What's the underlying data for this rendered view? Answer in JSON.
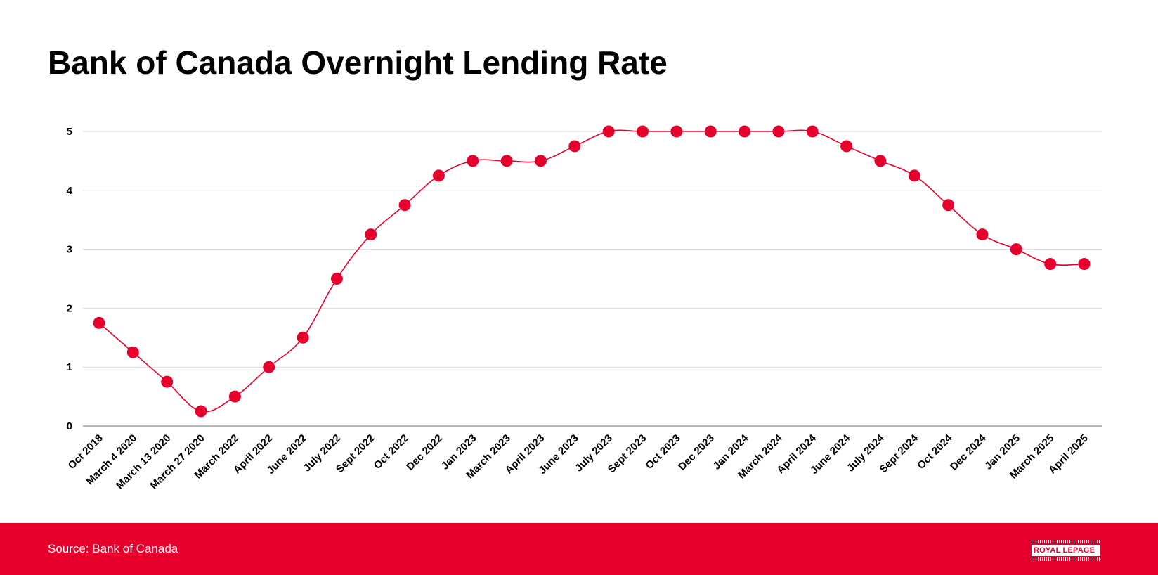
{
  "title": "Bank of Canada Overnight Lending Rate",
  "footer": {
    "source": "Source: Bank of Canada",
    "logo_text": "ROYAL LEPAGE",
    "background_color": "#E8002D"
  },
  "colors": {
    "series": "#E8002D",
    "grid": "#D9D9D9",
    "axis": "#888888"
  },
  "chart_data": {
    "type": "line",
    "title": "Bank of Canada Overnight Lending Rate",
    "xlabel": "",
    "ylabel": "",
    "categories": [
      "Oct 2018",
      "March 4 2020",
      "March 13 2020",
      "March 27 2020",
      "March 2022",
      "April 2022",
      "June 2022",
      "July 2022",
      "Sept 2022",
      "Oct 2022",
      "Dec 2022",
      "Jan 2023",
      "March 2023",
      "April 2023",
      "June 2023",
      "July 2023",
      "Sept 2023",
      "Oct 2023",
      "Dec 2023",
      "Jan 2024",
      "March 2024",
      "April 2024",
      "June 2024",
      "July 2024",
      "Sept 2024",
      "Oct 2024",
      "Dec 2024",
      "Jan 2025",
      "March 2025",
      "April 2025"
    ],
    "series": [
      {
        "values": [
          1.75,
          1.25,
          0.75,
          0.25,
          0.5,
          1.0,
          1.5,
          2.5,
          3.25,
          3.75,
          4.25,
          4.5,
          4.5,
          4.5,
          4.75,
          5.0,
          5.0,
          5.0,
          5.0,
          5.0,
          5.0,
          5.0,
          4.75,
          4.5,
          4.25,
          3.75,
          3.25,
          3.0,
          2.75,
          2.75
        ]
      }
    ],
    "ylim": [
      0,
      5
    ],
    "yticks": [
      "0",
      "1",
      "2",
      "3",
      "4",
      "5"
    ],
    "grid": true,
    "legend": "none",
    "smooth": true,
    "markers": true
  }
}
